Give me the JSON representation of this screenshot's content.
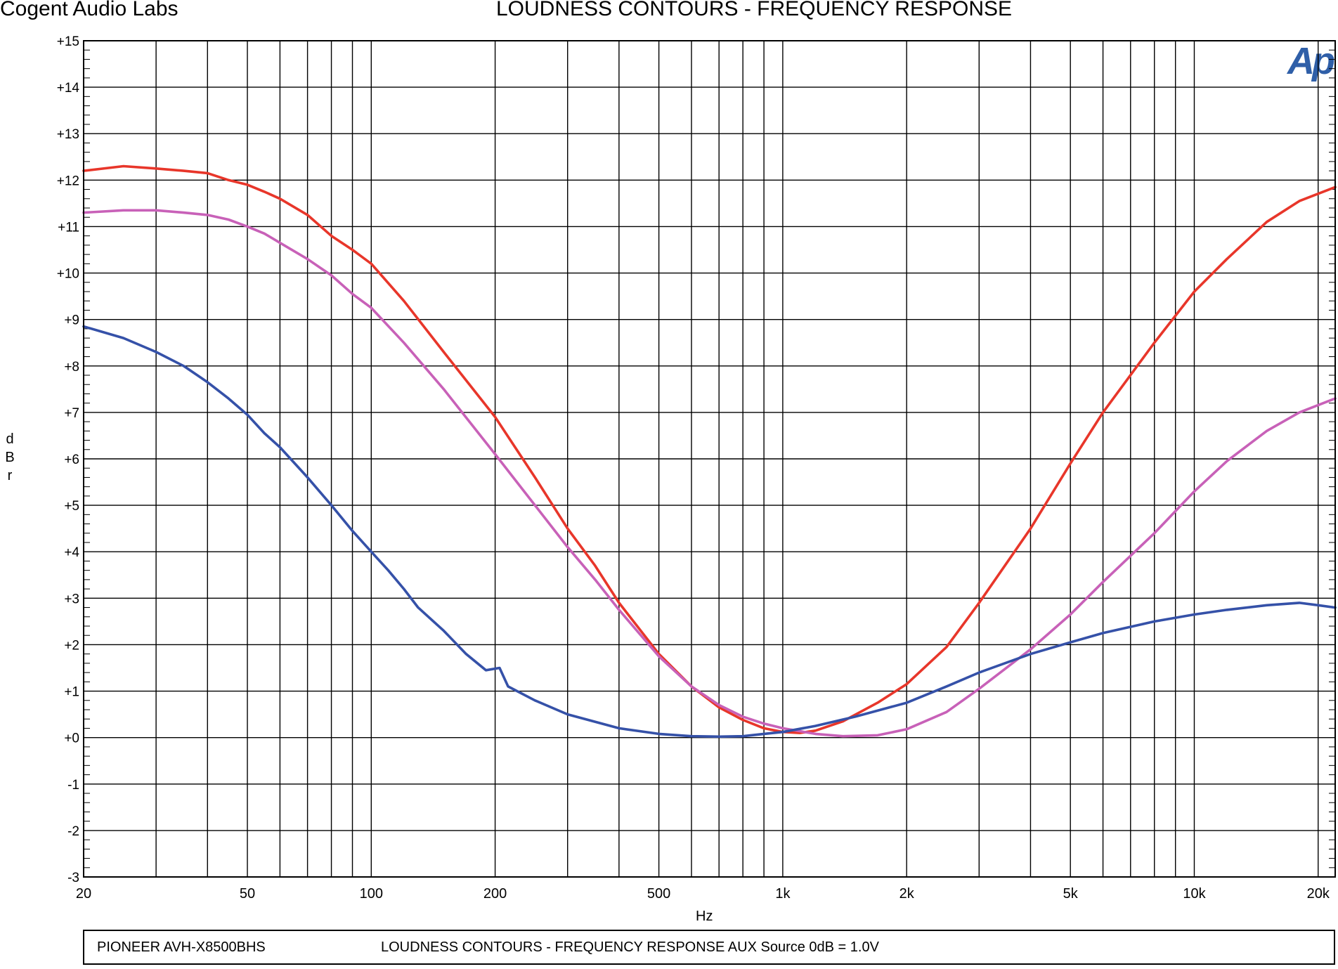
{
  "header": {
    "brand": "Cogent Audio Labs",
    "logo_text": "Ap"
  },
  "footer": {
    "device": "PIONEER AVH-X8500BHS",
    "description": "LOUDNESS CONTOURS  -  FREQUENCY RESPONSE    AUX Source   0dB = 1.0V"
  },
  "chart_data": {
    "type": "line",
    "title": "LOUDNESS CONTOURS  -  FREQUENCY RESPONSE",
    "xlabel": "Hz",
    "ylabel": "dBr",
    "x_scale": "log",
    "xlim": [
      20,
      22000
    ],
    "ylim": [
      -3,
      15
    ],
    "grid": true,
    "x_ticks": [
      {
        "value": 20,
        "label": "20"
      },
      {
        "value": 50,
        "label": "50"
      },
      {
        "value": 100,
        "label": "100"
      },
      {
        "value": 200,
        "label": "200"
      },
      {
        "value": 500,
        "label": "500"
      },
      {
        "value": 1000,
        "label": "1k"
      },
      {
        "value": 2000,
        "label": "2k"
      },
      {
        "value": 5000,
        "label": "5k"
      },
      {
        "value": 10000,
        "label": "10k"
      },
      {
        "value": 20000,
        "label": "20k"
      }
    ],
    "y_ticks": [
      {
        "value": 15,
        "label": "+15"
      },
      {
        "value": 14,
        "label": "+14"
      },
      {
        "value": 13,
        "label": "+13"
      },
      {
        "value": 12,
        "label": "+12"
      },
      {
        "value": 11,
        "label": "+11"
      },
      {
        "value": 10,
        "label": "+10"
      },
      {
        "value": 9,
        "label": "+9"
      },
      {
        "value": 8,
        "label": "+8"
      },
      {
        "value": 7,
        "label": "+7"
      },
      {
        "value": 6,
        "label": "+6"
      },
      {
        "value": 5,
        "label": "+5"
      },
      {
        "value": 4,
        "label": "+4"
      },
      {
        "value": 3,
        "label": "+3"
      },
      {
        "value": 2,
        "label": "+2"
      },
      {
        "value": 1,
        "label": "+1"
      },
      {
        "value": 0,
        "label": "+0"
      },
      {
        "value": -1,
        "label": "-1"
      },
      {
        "value": -2,
        "label": "-2"
      },
      {
        "value": -3,
        "label": "-3"
      }
    ],
    "series": [
      {
        "color": "#e8362a",
        "x": [
          20,
          25,
          30,
          35,
          40,
          45,
          50,
          55,
          60,
          70,
          80,
          90,
          100,
          120,
          150,
          200,
          250,
          300,
          350,
          400,
          500,
          600,
          700,
          800,
          900,
          1000,
          1100,
          1200,
          1400,
          1700,
          2000,
          2500,
          3000,
          4000,
          5000,
          6000,
          8000,
          10000,
          12000,
          15000,
          18000,
          22000
        ],
        "y": [
          12.2,
          12.3,
          12.25,
          12.2,
          12.15,
          12.0,
          11.9,
          11.75,
          11.6,
          11.25,
          10.8,
          10.5,
          10.2,
          9.4,
          8.3,
          6.9,
          5.6,
          4.5,
          3.7,
          2.9,
          1.8,
          1.1,
          0.65,
          0.38,
          0.2,
          0.12,
          0.1,
          0.15,
          0.35,
          0.75,
          1.15,
          1.95,
          2.9,
          4.5,
          5.9,
          7.0,
          8.5,
          9.6,
          10.3,
          11.1,
          11.55,
          11.85
        ]
      },
      {
        "color": "#c861b8",
        "x": [
          20,
          25,
          30,
          35,
          40,
          45,
          50,
          55,
          60,
          70,
          80,
          90,
          100,
          120,
          150,
          200,
          250,
          300,
          350,
          400,
          500,
          600,
          700,
          800,
          900,
          1000,
          1200,
          1400,
          1700,
          2000,
          2500,
          3000,
          4000,
          5000,
          6000,
          8000,
          10000,
          12000,
          15000,
          18000,
          22000
        ],
        "y": [
          11.3,
          11.35,
          11.35,
          11.3,
          11.25,
          11.15,
          11.0,
          10.85,
          10.65,
          10.3,
          9.95,
          9.55,
          9.25,
          8.5,
          7.5,
          6.1,
          5.0,
          4.1,
          3.4,
          2.75,
          1.75,
          1.1,
          0.7,
          0.45,
          0.3,
          0.2,
          0.08,
          0.03,
          0.05,
          0.18,
          0.55,
          1.05,
          1.9,
          2.65,
          3.35,
          4.4,
          5.3,
          5.95,
          6.6,
          7.0,
          7.3
        ]
      },
      {
        "color": "#3551a8",
        "x": [
          20,
          25,
          30,
          35,
          40,
          45,
          50,
          55,
          60,
          70,
          80,
          90,
          100,
          110,
          120,
          130,
          150,
          170,
          190,
          205,
          215,
          250,
          300,
          400,
          500,
          600,
          700,
          800,
          900,
          1000,
          1200,
          1500,
          2000,
          2500,
          3000,
          4000,
          5000,
          6000,
          8000,
          10000,
          12000,
          15000,
          18000,
          20000,
          22000
        ],
        "y": [
          8.85,
          8.6,
          8.3,
          8.0,
          7.65,
          7.3,
          6.95,
          6.55,
          6.25,
          5.6,
          5.0,
          4.45,
          4.0,
          3.6,
          3.2,
          2.8,
          2.3,
          1.8,
          1.45,
          1.5,
          1.1,
          0.8,
          0.5,
          0.2,
          0.08,
          0.03,
          0.02,
          0.03,
          0.08,
          0.12,
          0.25,
          0.45,
          0.75,
          1.1,
          1.4,
          1.8,
          2.05,
          2.25,
          2.5,
          2.65,
          2.75,
          2.85,
          2.9,
          2.85,
          2.8
        ]
      }
    ]
  }
}
